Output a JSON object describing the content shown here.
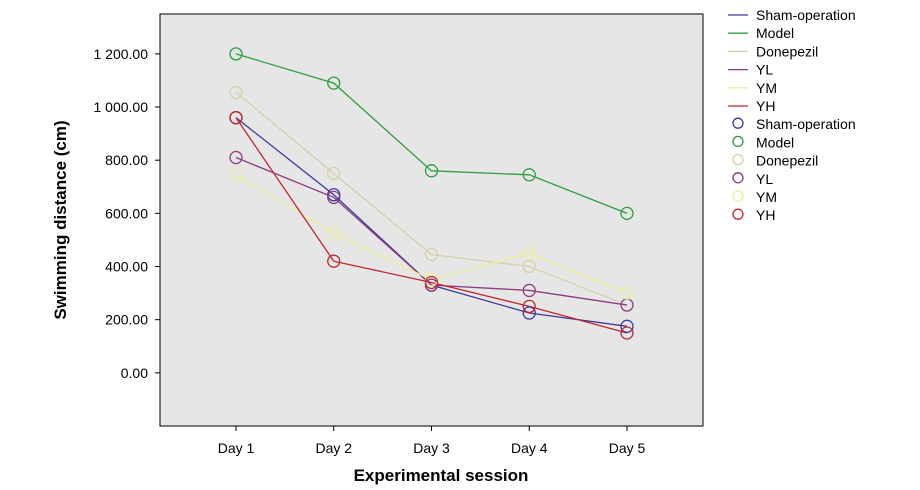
{
  "chart_data": {
    "type": "line",
    "title": "",
    "xlabel": "Experimental session",
    "ylabel": "Swimming distance (cm)",
    "categories": [
      "Day 1",
      "Day 2",
      "Day 3",
      "Day 4",
      "Day 5"
    ],
    "ylim": [
      -200,
      1350
    ],
    "yticks": [
      0,
      200,
      400,
      600,
      800,
      1000,
      1200
    ],
    "ytick_labels": [
      "0.00",
      "200.00",
      "400.00",
      "600.00",
      "800.00",
      "1 000.00",
      "1 200.00"
    ],
    "grid": false,
    "legend_position": "right",
    "background": "#e6e6e6",
    "series": [
      {
        "name": "Sham-operation",
        "color": "#3b3b9e",
        "values": [
          960,
          670,
          330,
          225,
          175
        ]
      },
      {
        "name": "Model",
        "color": "#2e9e3e",
        "values": [
          1200,
          1090,
          760,
          745,
          600
        ]
      },
      {
        "name": "Donepezil",
        "color": "#d6d0a8",
        "values": [
          1055,
          750,
          445,
          400,
          255
        ]
      },
      {
        "name": "YL",
        "color": "#8a3c7e",
        "values": [
          810,
          660,
          330,
          310,
          255
        ]
      },
      {
        "name": "YM",
        "color": "#eeee9a",
        "values": [
          745,
          525,
          350,
          450,
          300
        ]
      },
      {
        "name": "YH",
        "color": "#c2262e",
        "values": [
          960,
          420,
          340,
          250,
          150
        ]
      }
    ]
  }
}
